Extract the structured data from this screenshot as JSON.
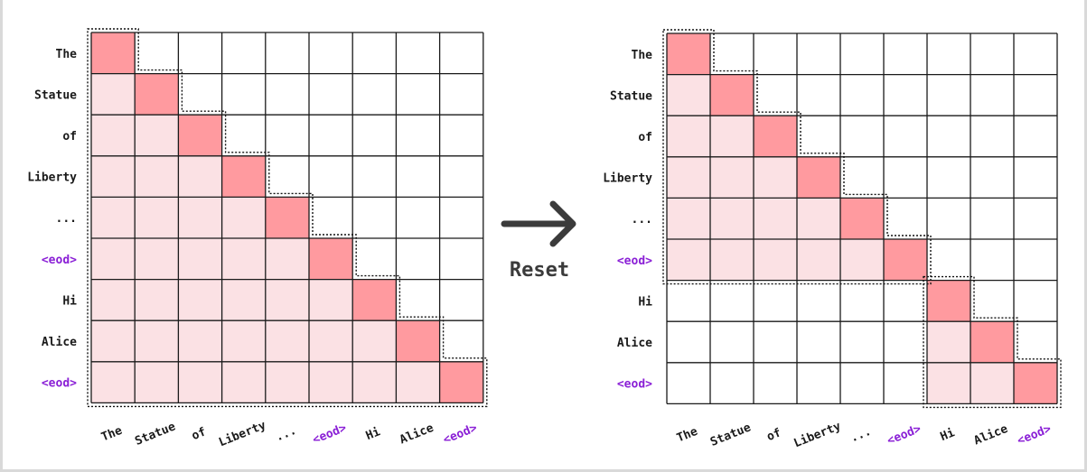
{
  "colors": {
    "diagonal": "#ff9a9f",
    "attended": "#fbe1e4",
    "empty": "#ffffff",
    "grid": "#1a1a1a",
    "token_text": "#1a1a1a",
    "eod_text": "#8a1fd6",
    "arrow": "#3b3b3b"
  },
  "arrow": {
    "label": "Reset",
    "icon": "right-arrow-icon"
  },
  "panels": [
    {
      "id": "before",
      "tokens": [
        "The",
        "Statue",
        "of",
        "Liberty",
        "...",
        "<eod>",
        "Hi",
        "Alice",
        "<eod>"
      ],
      "special_tokens": [
        "<eod>"
      ],
      "mask": [
        [
          2,
          0,
          0,
          0,
          0,
          0,
          0,
          0,
          0
        ],
        [
          1,
          2,
          0,
          0,
          0,
          0,
          0,
          0,
          0
        ],
        [
          1,
          1,
          2,
          0,
          0,
          0,
          0,
          0,
          0
        ],
        [
          1,
          1,
          1,
          2,
          0,
          0,
          0,
          0,
          0
        ],
        [
          1,
          1,
          1,
          1,
          2,
          0,
          0,
          0,
          0
        ],
        [
          1,
          1,
          1,
          1,
          1,
          2,
          0,
          0,
          0
        ],
        [
          1,
          1,
          1,
          1,
          1,
          1,
          2,
          0,
          0
        ],
        [
          1,
          1,
          1,
          1,
          1,
          1,
          1,
          2,
          0
        ],
        [
          1,
          1,
          1,
          1,
          1,
          1,
          1,
          1,
          2
        ]
      ],
      "segments": [
        [
          0,
          8
        ]
      ]
    },
    {
      "id": "after",
      "tokens": [
        "The",
        "Statue",
        "of",
        "Liberty",
        "...",
        "<eod>",
        "Hi",
        "Alice",
        "<eod>"
      ],
      "special_tokens": [
        "<eod>"
      ],
      "mask": [
        [
          2,
          0,
          0,
          0,
          0,
          0,
          0,
          0,
          0
        ],
        [
          1,
          2,
          0,
          0,
          0,
          0,
          0,
          0,
          0
        ],
        [
          1,
          1,
          2,
          0,
          0,
          0,
          0,
          0,
          0
        ],
        [
          1,
          1,
          1,
          2,
          0,
          0,
          0,
          0,
          0
        ],
        [
          1,
          1,
          1,
          1,
          2,
          0,
          0,
          0,
          0
        ],
        [
          1,
          1,
          1,
          1,
          1,
          2,
          0,
          0,
          0
        ],
        [
          0,
          0,
          0,
          0,
          0,
          0,
          2,
          0,
          0
        ],
        [
          0,
          0,
          0,
          0,
          0,
          0,
          1,
          2,
          0
        ],
        [
          0,
          0,
          0,
          0,
          0,
          0,
          1,
          1,
          2
        ]
      ],
      "segments": [
        [
          0,
          5
        ],
        [
          6,
          8
        ]
      ]
    }
  ]
}
